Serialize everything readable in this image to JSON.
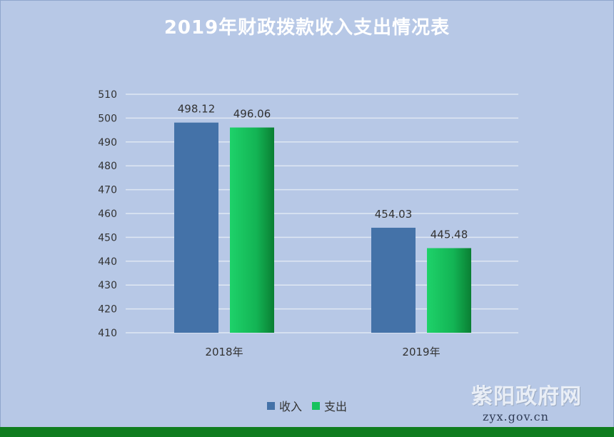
{
  "title": "2019年财政拨款收入支出情况表",
  "chart_data": {
    "type": "bar",
    "categories": [
      "2018年",
      "2019年"
    ],
    "series": [
      {
        "name": "收入",
        "values": [
          498.12,
          454.03
        ],
        "color": "#4472a8"
      },
      {
        "name": "支出",
        "values": [
          496.06,
          445.48
        ],
        "color": "#16c25e"
      }
    ],
    "value_labels": [
      [
        "498.12",
        "454.03"
      ],
      [
        "496.06",
        "445.48"
      ]
    ],
    "ylim": [
      410,
      510
    ],
    "yticks": [
      410,
      420,
      430,
      440,
      450,
      460,
      470,
      480,
      490,
      500,
      510
    ],
    "grid": true,
    "legend_position": "bottom"
  },
  "watermark": {
    "name": "紫阳政府网",
    "url": "zyx.gov.cn"
  },
  "colors": {
    "background": "#b7c8e6",
    "bottom_bar": "#0f7d1f",
    "grid": "#dfe7f3"
  }
}
